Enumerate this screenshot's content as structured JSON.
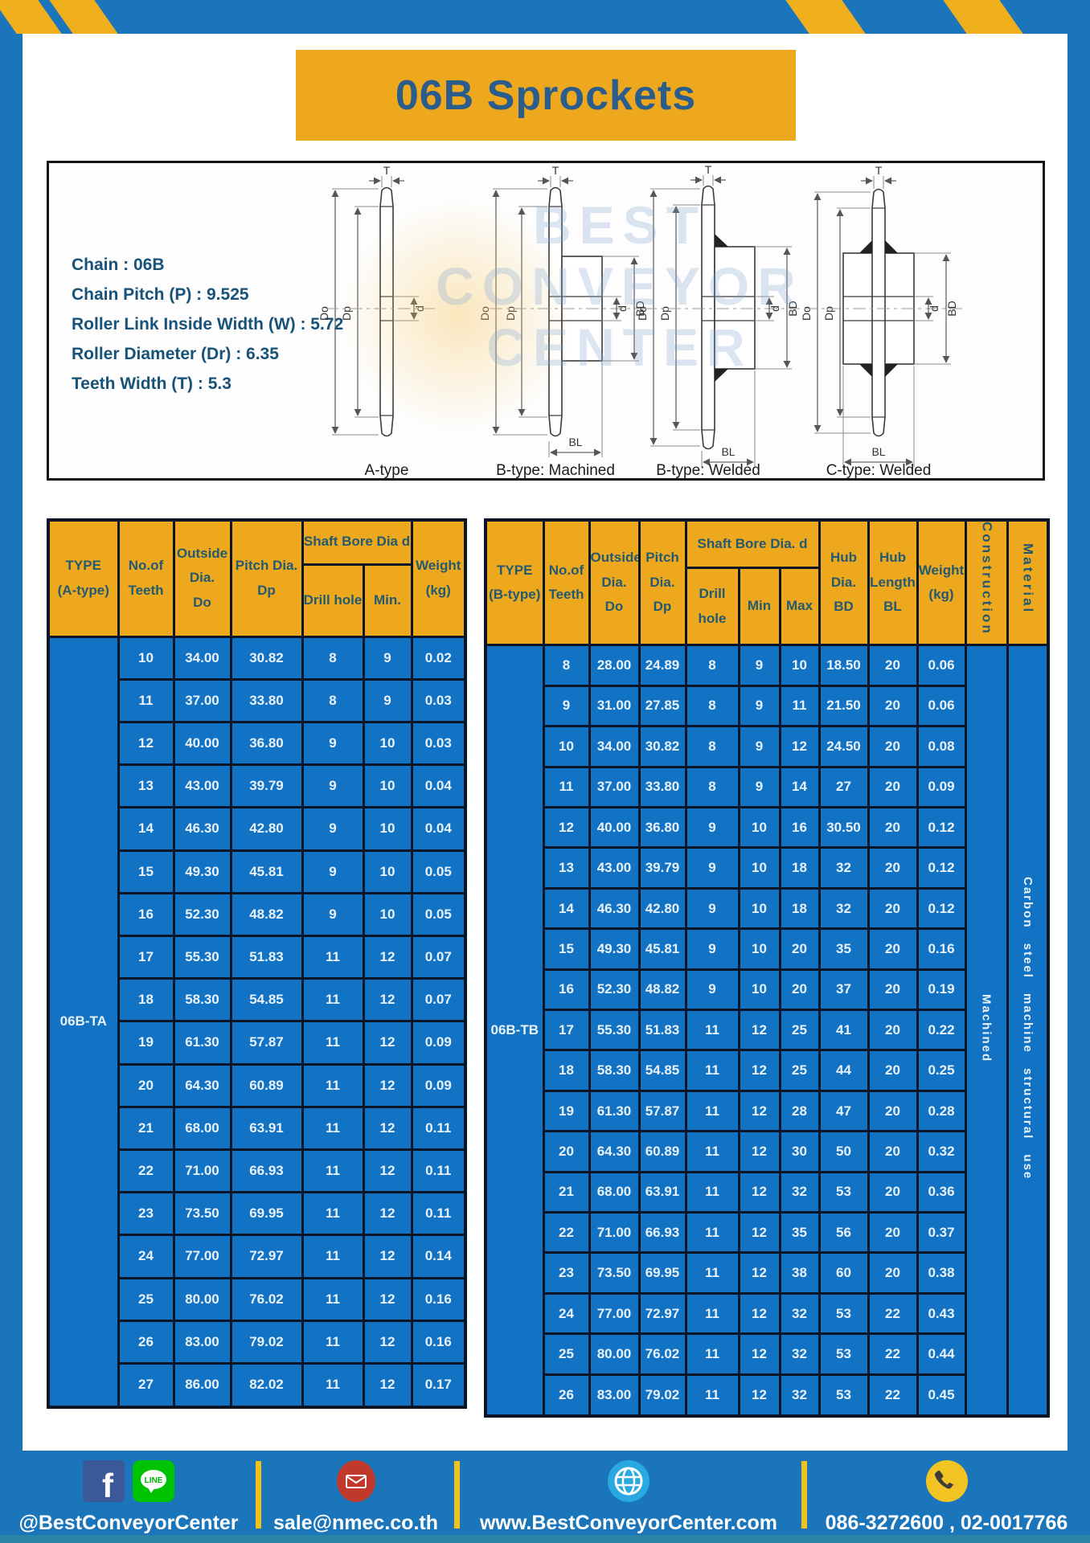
{
  "page": {
    "title": "06B Sprockets"
  },
  "colors": {
    "frame_blue": "#1b75bb",
    "accent_yellow": "#eea81e",
    "table_blue": "#1273c5",
    "border_navy": "#0a1625",
    "header_text": "#235a70",
    "title_text": "#2b5d8c"
  },
  "specs": {
    "lines": [
      "Chain  : 06B",
      "Chain Pitch (P)  :  9.525",
      "Roller Link Inside Width (W)  :  5.72",
      "Roller Diameter (Dr)  : 6.35",
      "Teeth Width (T)  :  5.3"
    ],
    "dims": {
      "t": "T",
      "do": "Do",
      "dp": "Dp",
      "d": "d",
      "bd": "BD",
      "bl": "BL"
    },
    "watermark": "BEST\nCONVEYOR\nCENTER",
    "diagrams": [
      {
        "caption": "A-type"
      },
      {
        "caption": "B-type: Machined"
      },
      {
        "caption": "B-type: Welded"
      },
      {
        "caption": "C-type: Welded"
      }
    ]
  },
  "table_a": {
    "headers": {
      "type": "TYPE\n(A-type)",
      "teeth": "No.of\nTeeth",
      "outside": "Outside\nDia.\nDo",
      "pitch": "Pitch Dia.\nDp",
      "shaft_group": "Shaft Bore Dia d",
      "drill": "Drill hole",
      "min": "Min.",
      "weight": "Weight\n(kg)"
    },
    "type_value": "06B-TA",
    "rows": [
      [
        "10",
        "34.00",
        "30.82",
        "8",
        "9",
        "0.02"
      ],
      [
        "11",
        "37.00",
        "33.80",
        "8",
        "9",
        "0.03"
      ],
      [
        "12",
        "40.00",
        "36.80",
        "9",
        "10",
        "0.03"
      ],
      [
        "13",
        "43.00",
        "39.79",
        "9",
        "10",
        "0.04"
      ],
      [
        "14",
        "46.30",
        "42.80",
        "9",
        "10",
        "0.04"
      ],
      [
        "15",
        "49.30",
        "45.81",
        "9",
        "10",
        "0.05"
      ],
      [
        "16",
        "52.30",
        "48.82",
        "9",
        "10",
        "0.05"
      ],
      [
        "17",
        "55.30",
        "51.83",
        "11",
        "12",
        "0.07"
      ],
      [
        "18",
        "58.30",
        "54.85",
        "11",
        "12",
        "0.07"
      ],
      [
        "19",
        "61.30",
        "57.87",
        "11",
        "12",
        "0.09"
      ],
      [
        "20",
        "64.30",
        "60.89",
        "11",
        "12",
        "0.09"
      ],
      [
        "21",
        "68.00",
        "63.91",
        "11",
        "12",
        "0.11"
      ],
      [
        "22",
        "71.00",
        "66.93",
        "11",
        "12",
        "0.11"
      ],
      [
        "23",
        "73.50",
        "69.95",
        "11",
        "12",
        "0.11"
      ],
      [
        "24",
        "77.00",
        "72.97",
        "11",
        "12",
        "0.14"
      ],
      [
        "25",
        "80.00",
        "76.02",
        "11",
        "12",
        "0.16"
      ],
      [
        "26",
        "83.00",
        "79.02",
        "11",
        "12",
        "0.16"
      ],
      [
        "27",
        "86.00",
        "82.02",
        "11",
        "12",
        "0.17"
      ]
    ]
  },
  "table_b": {
    "headers": {
      "type": "TYPE\n(B-type)",
      "teeth": "No.of\nTeeth",
      "outside": "Outside\nDia.\nDo",
      "pitch": "Pitch\nDia.\nDp",
      "shaft_group": "Shaft Bore Dia. d",
      "drill": "Drill hole",
      "min": "Min",
      "max": "Max",
      "hub_dia": "Hub\nDia.\nBD",
      "hub_len": "Hub\nLength\nBL",
      "weight": "Weight\n(kg)",
      "construction": "Construction",
      "material": "Material"
    },
    "type_value": "06B-TB",
    "construction_value": "Machined",
    "material_value": "Carbon steel machine structural use",
    "rows": [
      [
        "8",
        "28.00",
        "24.89",
        "8",
        "9",
        "10",
        "18.50",
        "20",
        "0.06"
      ],
      [
        "9",
        "31.00",
        "27.85",
        "8",
        "9",
        "11",
        "21.50",
        "20",
        "0.06"
      ],
      [
        "10",
        "34.00",
        "30.82",
        "8",
        "9",
        "12",
        "24.50",
        "20",
        "0.08"
      ],
      [
        "11",
        "37.00",
        "33.80",
        "8",
        "9",
        "14",
        "27",
        "20",
        "0.09"
      ],
      [
        "12",
        "40.00",
        "36.80",
        "9",
        "10",
        "16",
        "30.50",
        "20",
        "0.12"
      ],
      [
        "13",
        "43.00",
        "39.79",
        "9",
        "10",
        "18",
        "32",
        "20",
        "0.12"
      ],
      [
        "14",
        "46.30",
        "42.80",
        "9",
        "10",
        "18",
        "32",
        "20",
        "0.12"
      ],
      [
        "15",
        "49.30",
        "45.81",
        "9",
        "10",
        "20",
        "35",
        "20",
        "0.16"
      ],
      [
        "16",
        "52.30",
        "48.82",
        "9",
        "10",
        "20",
        "37",
        "20",
        "0.19"
      ],
      [
        "17",
        "55.30",
        "51.83",
        "11",
        "12",
        "25",
        "41",
        "20",
        "0.22"
      ],
      [
        "18",
        "58.30",
        "54.85",
        "11",
        "12",
        "25",
        "44",
        "20",
        "0.25"
      ],
      [
        "19",
        "61.30",
        "57.87",
        "11",
        "12",
        "28",
        "47",
        "20",
        "0.28"
      ],
      [
        "20",
        "64.30",
        "60.89",
        "11",
        "12",
        "30",
        "50",
        "20",
        "0.32"
      ],
      [
        "21",
        "68.00",
        "63.91",
        "11",
        "12",
        "32",
        "53",
        "20",
        "0.36"
      ],
      [
        "22",
        "71.00",
        "66.93",
        "11",
        "12",
        "35",
        "56",
        "20",
        "0.37"
      ],
      [
        "23",
        "73.50",
        "69.95",
        "11",
        "12",
        "38",
        "60",
        "20",
        "0.38"
      ],
      [
        "24",
        "77.00",
        "72.97",
        "11",
        "12",
        "32",
        "53",
        "22",
        "0.43"
      ],
      [
        "25",
        "80.00",
        "76.02",
        "11",
        "12",
        "32",
        "53",
        "22",
        "0.44"
      ],
      [
        "26",
        "83.00",
        "79.02",
        "11",
        "12",
        "32",
        "53",
        "22",
        "0.45"
      ]
    ]
  },
  "footer": {
    "items": [
      {
        "icon": "facebook-line",
        "label": "@BestConveyorCenter"
      },
      {
        "icon": "email",
        "label": "sale@nmec.co.th"
      },
      {
        "icon": "globe",
        "label": "www.BestConveyorCenter.com"
      },
      {
        "icon": "phone",
        "label": "086-3272600 , 02-0017766"
      }
    ],
    "fb_letter": "f",
    "line_label": "LINE"
  }
}
